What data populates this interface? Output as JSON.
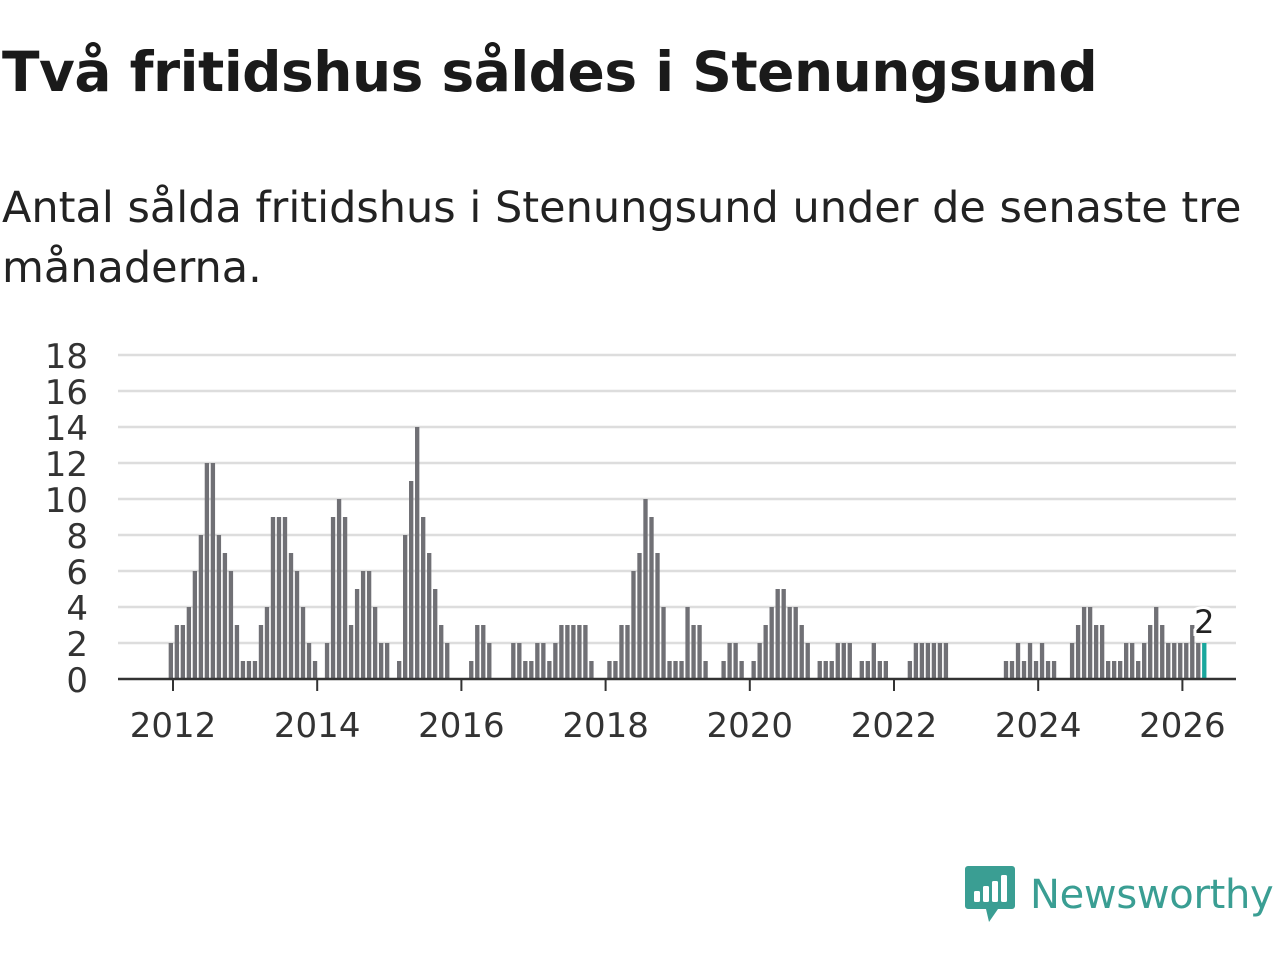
{
  "header": {
    "title": "Två fritidshus såldes i Stenungsund",
    "subtitle": "Antal sålda fritidshus i Stenungsund under de senaste tre månaderna."
  },
  "brand": {
    "name": "Newsworthy",
    "icon": "newsworthy-logo-icon",
    "color": "#3a9e93"
  },
  "colors": {
    "bar": "#707075",
    "highlight": "#1aa79d",
    "grid": "#dddddd",
    "axis": "#333333"
  },
  "chart_data": {
    "type": "bar",
    "title": "Två fritidshus såldes i Stenungsund",
    "xlabel": "",
    "ylabel": "",
    "x_start": "2012-01",
    "x_end": "2026-01",
    "ylim": [
      0,
      18
    ],
    "y_ticks": [
      0,
      2,
      4,
      6,
      8,
      10,
      12,
      14,
      16,
      18
    ],
    "x_ticks": [
      "2012",
      "2014",
      "2016",
      "2018",
      "2020",
      "2022",
      "2024",
      "2026"
    ],
    "grid": true,
    "values": [
      2,
      3,
      3,
      4,
      6,
      8,
      12,
      12,
      8,
      7,
      6,
      3,
      1,
      1,
      1,
      3,
      4,
      9,
      9,
      9,
      7,
      6,
      4,
      2,
      1,
      0,
      2,
      9,
      10,
      9,
      3,
      5,
      6,
      6,
      4,
      2,
      2,
      0,
      1,
      8,
      11,
      14,
      9,
      7,
      5,
      3,
      2,
      0,
      0,
      0,
      1,
      3,
      3,
      2,
      0,
      0,
      0,
      2,
      2,
      1,
      1,
      2,
      2,
      1,
      2,
      3,
      3,
      3,
      3,
      3,
      1,
      0,
      0,
      1,
      1,
      3,
      3,
      6,
      7,
      10,
      9,
      7,
      4,
      1,
      1,
      1,
      4,
      3,
      3,
      1,
      0,
      0,
      1,
      2,
      2,
      1,
      0,
      1,
      2,
      3,
      4,
      5,
      5,
      4,
      4,
      3,
      2,
      0,
      1,
      1,
      1,
      2,
      2,
      2,
      0,
      1,
      1,
      2,
      1,
      1,
      0,
      0,
      0,
      1,
      2,
      2,
      2,
      2,
      2,
      2,
      0,
      0,
      0,
      0,
      0,
      0,
      0,
      0,
      0,
      1,
      1,
      2,
      1,
      2,
      1,
      2,
      1,
      1,
      0,
      0,
      2,
      3,
      4,
      4,
      3,
      3,
      1,
      1,
      1,
      2,
      2,
      1,
      2,
      3,
      4,
      3,
      2,
      2,
      2,
      2,
      3,
      2,
      2
    ],
    "highlight_last": true,
    "annotation": "2"
  }
}
